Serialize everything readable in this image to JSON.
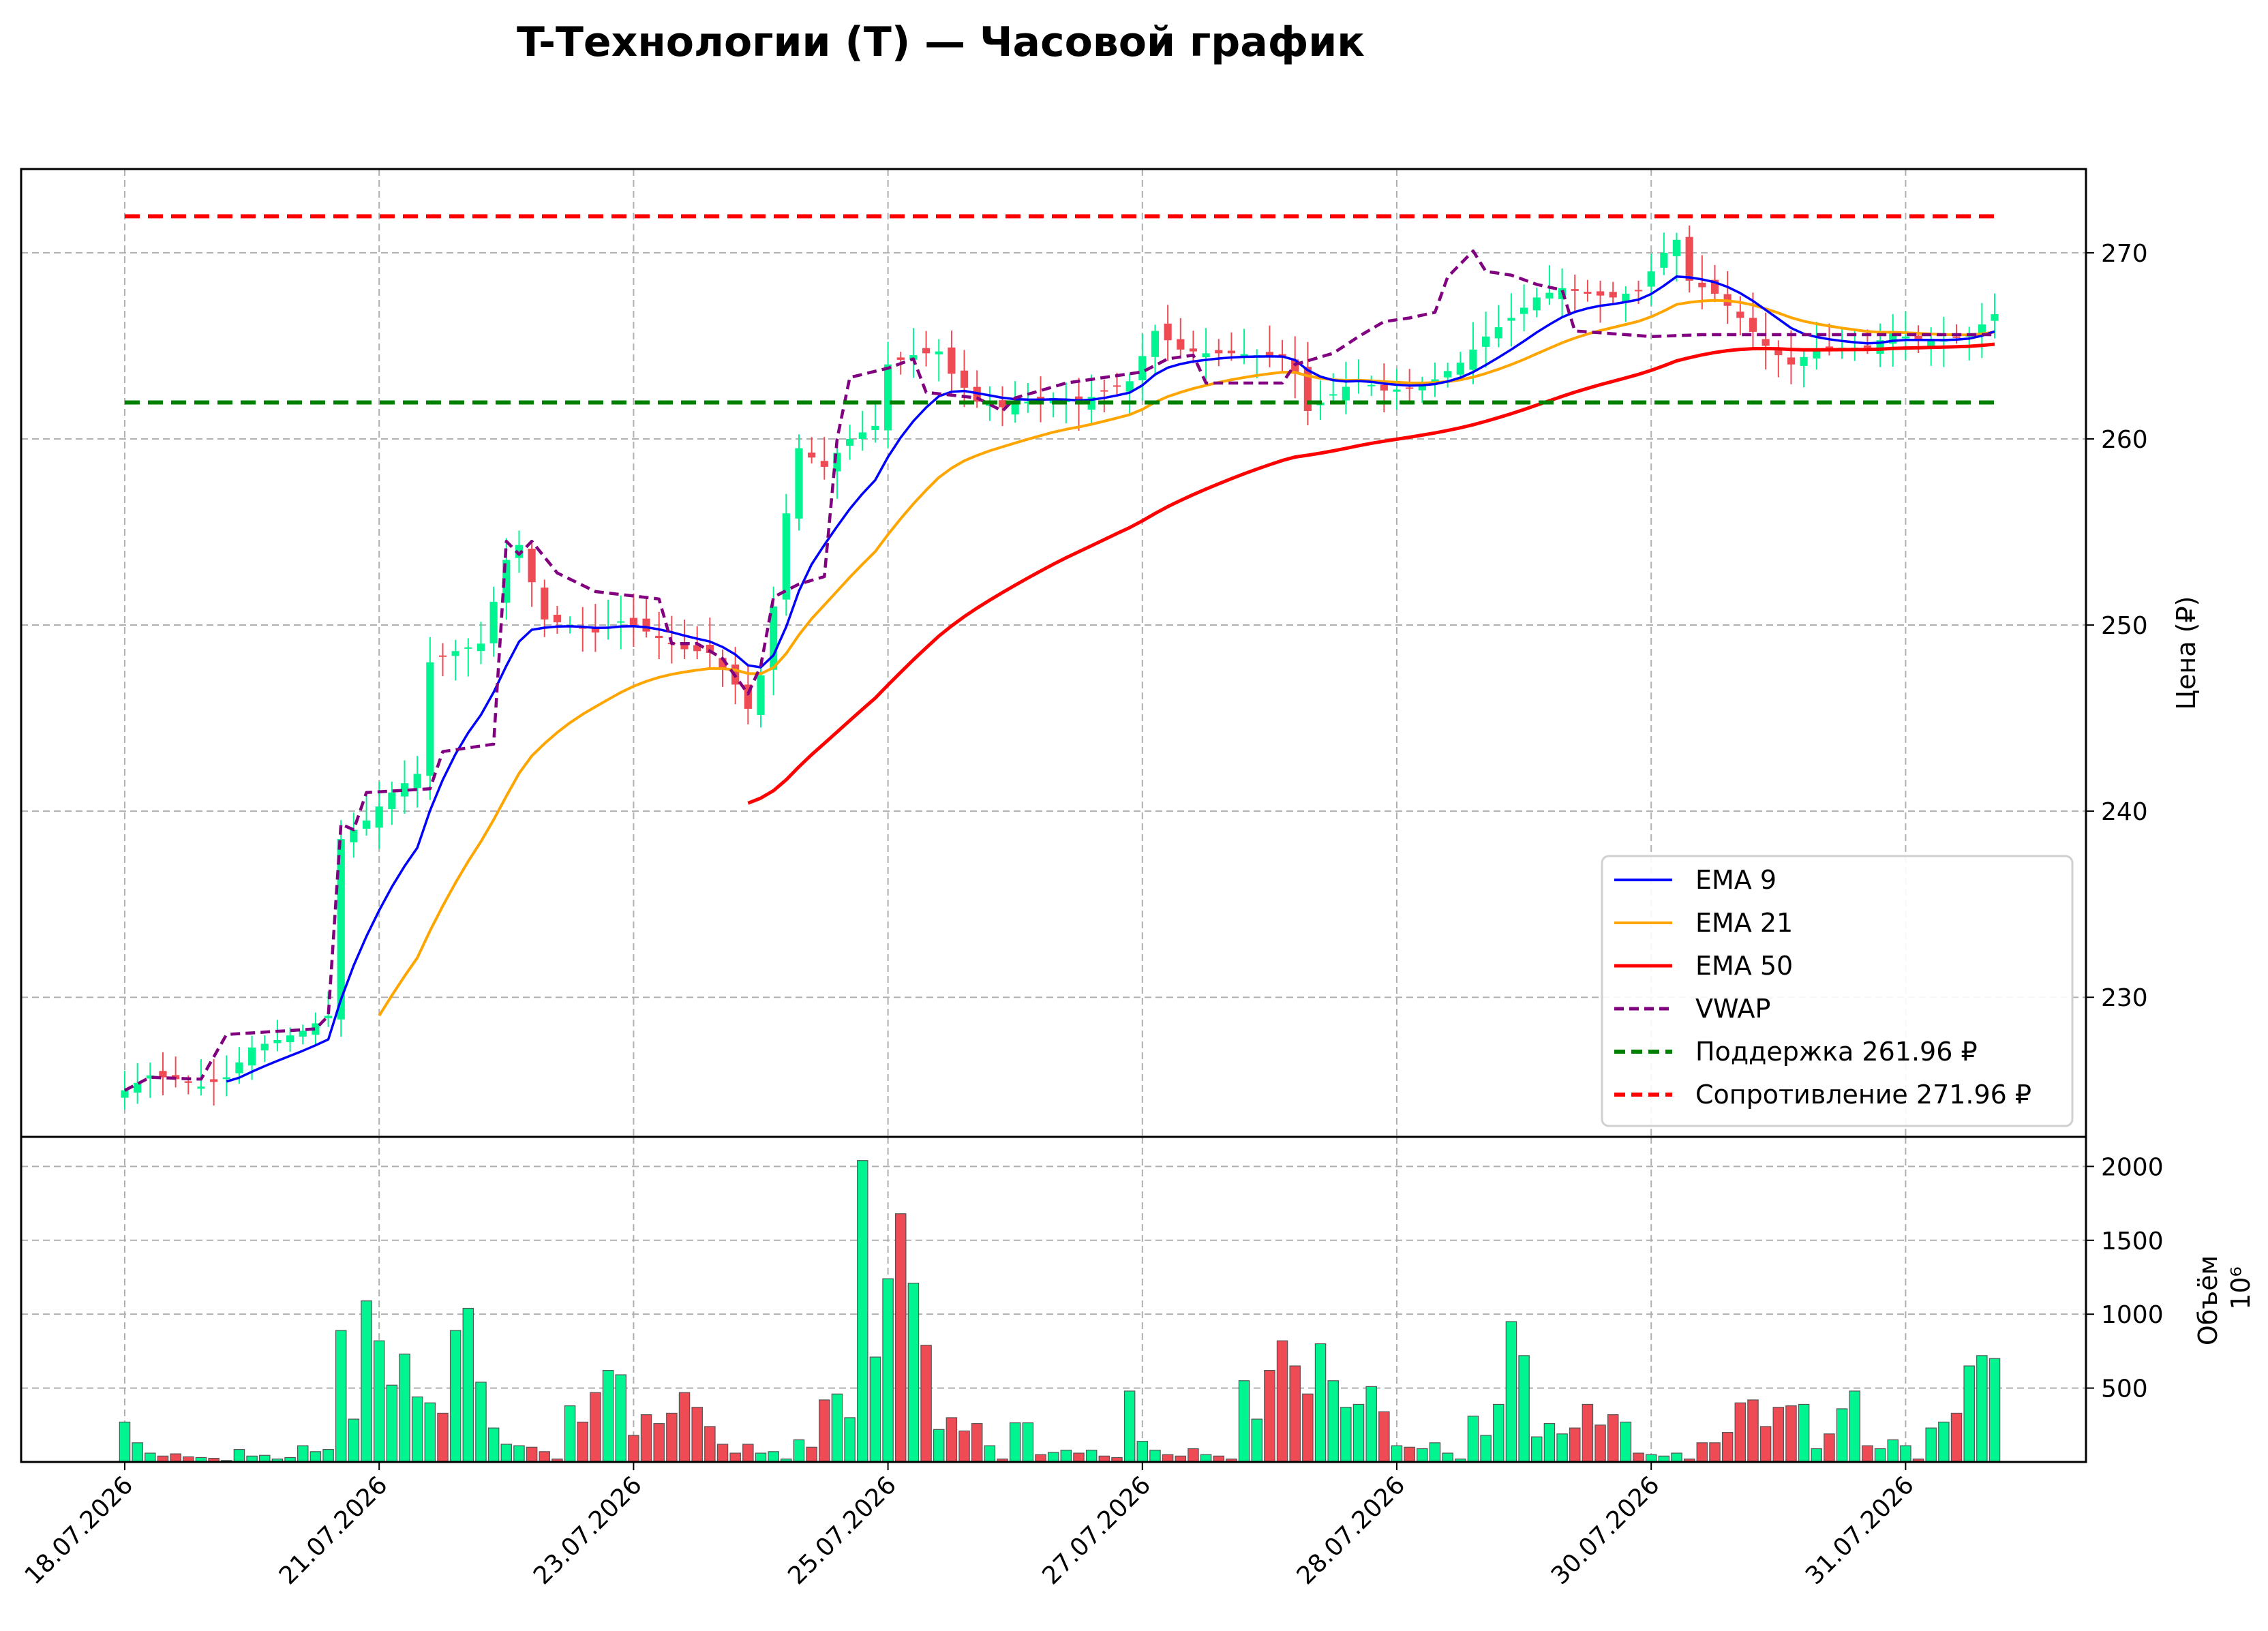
{
  "chart_data": {
    "type": "candlestick-with-volume",
    "title": "T-Технологии (T) — Часовой график",
    "price_panel": {
      "ylabel": "Цена (₽)",
      "ylim": [
        222.5,
        274.5
      ],
      "yticks": [
        230,
        240,
        250,
        260,
        270
      ],
      "grid": true,
      "legend_position": "lower-right"
    },
    "volume_panel": {
      "ylabel": "Объём",
      "exponent_label": "10⁶",
      "ylim": [
        0,
        2200
      ],
      "yticks": [
        500,
        1000,
        1500,
        2000
      ],
      "grid": true,
      "up_color": "#00f591",
      "down_color": "#ef4b55"
    },
    "x_axis": {
      "bars": 148,
      "tick_labels": [
        {
          "bar": 0,
          "label": "18.07.2026"
        },
        {
          "bar": 20,
          "label": "21.07.2026"
        },
        {
          "bar": 40,
          "label": "23.07.2026"
        },
        {
          "bar": 60,
          "label": "25.07.2026"
        },
        {
          "bar": 80,
          "label": "27.07.2026"
        },
        {
          "bar": 100,
          "label": "28.07.2026"
        },
        {
          "bar": 120,
          "label": "30.07.2026"
        },
        {
          "bar": 140,
          "label": "31.07.2026"
        }
      ]
    },
    "price_anchors": [
      [
        0,
        225.0
      ],
      [
        2,
        225.8
      ],
      [
        4,
        225.6
      ],
      [
        6,
        225.2
      ],
      [
        8,
        225.7
      ],
      [
        9,
        226.5
      ],
      [
        10,
        227.3
      ],
      [
        12,
        227.7
      ],
      [
        14,
        228.2
      ],
      [
        15,
        228.6
      ],
      [
        16,
        229.0
      ],
      [
        17,
        238.5
      ],
      [
        19,
        239.5
      ],
      [
        21,
        241.0
      ],
      [
        23,
        242.0
      ],
      [
        24,
        248.0
      ],
      [
        26,
        248.6
      ],
      [
        28,
        249.0
      ],
      [
        30,
        253.5
      ],
      [
        31,
        254.3
      ],
      [
        33,
        250.3
      ],
      [
        35,
        250.0
      ],
      [
        37,
        249.6
      ],
      [
        39,
        250.2
      ],
      [
        40,
        250.0
      ],
      [
        42,
        249.3
      ],
      [
        44,
        248.7
      ],
      [
        46,
        248.5
      ],
      [
        48,
        246.8
      ],
      [
        49,
        245.5
      ],
      [
        50,
        247.3
      ],
      [
        51,
        251.0
      ],
      [
        52,
        256.0
      ],
      [
        53,
        259.5
      ],
      [
        55,
        258.5
      ],
      [
        57,
        260.0
      ],
      [
        59,
        260.7
      ],
      [
        60,
        264.0
      ],
      [
        62,
        264.5
      ],
      [
        64,
        264.7
      ],
      [
        65,
        263.5
      ],
      [
        67,
        262.0
      ],
      [
        69,
        261.7
      ],
      [
        71,
        262.0
      ],
      [
        73,
        262.2
      ],
      [
        75,
        261.9
      ],
      [
        77,
        262.6
      ],
      [
        79,
        263.1
      ],
      [
        81,
        265.8
      ],
      [
        83,
        264.8
      ],
      [
        85,
        264.6
      ],
      [
        87,
        264.6
      ],
      [
        89,
        264.5
      ],
      [
        91,
        264.4
      ],
      [
        92,
        263.5
      ],
      [
        93,
        261.5
      ],
      [
        95,
        262.4
      ],
      [
        97,
        263.2
      ],
      [
        99,
        262.6
      ],
      [
        101,
        262.7
      ],
      [
        103,
        263.2
      ],
      [
        105,
        264.1
      ],
      [
        107,
        265.5
      ],
      [
        109,
        266.5
      ],
      [
        111,
        267.6
      ],
      [
        113,
        268.1
      ],
      [
        115,
        267.8
      ],
      [
        117,
        267.6
      ],
      [
        119,
        268.0
      ],
      [
        121,
        270.0
      ],
      [
        122,
        270.7
      ],
      [
        123,
        268.5
      ],
      [
        125,
        267.8
      ],
      [
        127,
        266.5
      ],
      [
        129,
        265.0
      ],
      [
        131,
        264.0
      ],
      [
        133,
        264.8
      ],
      [
        135,
        264.9
      ],
      [
        137,
        264.9
      ],
      [
        139,
        265.7
      ],
      [
        141,
        265.3
      ],
      [
        143,
        265.3
      ],
      [
        145,
        265.6
      ],
      [
        147,
        266.7
      ]
    ],
    "volume_anchors": [
      [
        0,
        270
      ],
      [
        1,
        130
      ],
      [
        2,
        60
      ],
      [
        3,
        40
      ],
      [
        4,
        55
      ],
      [
        5,
        35
      ],
      [
        6,
        30
      ],
      [
        7,
        25
      ],
      [
        8,
        10
      ],
      [
        9,
        85
      ],
      [
        10,
        40
      ],
      [
        11,
        45
      ],
      [
        12,
        20
      ],
      [
        13,
        30
      ],
      [
        14,
        110
      ],
      [
        15,
        70
      ],
      [
        16,
        85
      ],
      [
        17,
        890
      ],
      [
        18,
        290
      ],
      [
        19,
        1090
      ],
      [
        20,
        820
      ],
      [
        21,
        520
      ],
      [
        22,
        730
      ],
      [
        23,
        440
      ],
      [
        24,
        400
      ],
      [
        25,
        330
      ],
      [
        26,
        890
      ],
      [
        27,
        1040
      ],
      [
        28,
        540
      ],
      [
        29,
        230
      ],
      [
        30,
        120
      ],
      [
        31,
        110
      ],
      [
        32,
        100
      ],
      [
        33,
        70
      ],
      [
        34,
        20
      ],
      [
        35,
        380
      ],
      [
        36,
        270
      ],
      [
        37,
        470
      ],
      [
        38,
        620
      ],
      [
        39,
        590
      ],
      [
        40,
        180
      ],
      [
        41,
        320
      ],
      [
        42,
        260
      ],
      [
        43,
        330
      ],
      [
        44,
        470
      ],
      [
        45,
        370
      ],
      [
        46,
        240
      ],
      [
        47,
        120
      ],
      [
        48,
        60
      ],
      [
        49,
        120
      ],
      [
        50,
        60
      ],
      [
        51,
        70
      ],
      [
        52,
        20
      ],
      [
        53,
        150
      ],
      [
        54,
        100
      ],
      [
        55,
        420
      ],
      [
        56,
        460
      ],
      [
        57,
        300
      ],
      [
        58,
        2040
      ],
      [
        59,
        710
      ],
      [
        60,
        1240
      ],
      [
        61,
        1680
      ],
      [
        62,
        1210
      ],
      [
        63,
        790
      ],
      [
        64,
        220
      ],
      [
        65,
        300
      ],
      [
        66,
        210
      ],
      [
        67,
        260
      ],
      [
        68,
        110
      ],
      [
        69,
        20
      ],
      [
        70,
        265
      ],
      [
        71,
        265
      ],
      [
        72,
        50
      ],
      [
        73,
        65
      ],
      [
        74,
        80
      ],
      [
        75,
        60
      ],
      [
        76,
        80
      ],
      [
        77,
        40
      ],
      [
        78,
        30
      ],
      [
        79,
        480
      ],
      [
        80,
        140
      ],
      [
        81,
        80
      ],
      [
        82,
        50
      ],
      [
        83,
        40
      ],
      [
        84,
        90
      ],
      [
        85,
        50
      ],
      [
        86,
        40
      ],
      [
        87,
        20
      ],
      [
        88,
        550
      ],
      [
        89,
        290
      ],
      [
        90,
        620
      ],
      [
        91,
        820
      ],
      [
        92,
        650
      ],
      [
        93,
        460
      ],
      [
        94,
        800
      ],
      [
        95,
        550
      ],
      [
        96,
        370
      ],
      [
        97,
        390
      ],
      [
        98,
        510
      ],
      [
        99,
        340
      ],
      [
        100,
        110
      ],
      [
        101,
        100
      ],
      [
        102,
        90
      ],
      [
        103,
        130
      ],
      [
        104,
        60
      ],
      [
        105,
        20
      ],
      [
        106,
        310
      ],
      [
        107,
        180
      ],
      [
        108,
        390
      ],
      [
        109,
        950
      ],
      [
        110,
        720
      ],
      [
        111,
        170
      ],
      [
        112,
        260
      ],
      [
        113,
        190
      ],
      [
        114,
        230
      ],
      [
        115,
        390
      ],
      [
        116,
        250
      ],
      [
        117,
        320
      ],
      [
        118,
        270
      ],
      [
        119,
        60
      ],
      [
        120,
        50
      ],
      [
        121,
        40
      ],
      [
        122,
        60
      ],
      [
        123,
        20
      ],
      [
        124,
        130
      ],
      [
        125,
        130
      ],
      [
        126,
        200
      ],
      [
        127,
        400
      ],
      [
        128,
        420
      ],
      [
        129,
        240
      ],
      [
        130,
        370
      ],
      [
        131,
        380
      ],
      [
        132,
        390
      ],
      [
        133,
        90
      ],
      [
        134,
        190
      ],
      [
        135,
        360
      ],
      [
        136,
        480
      ],
      [
        137,
        110
      ],
      [
        138,
        90
      ],
      [
        139,
        150
      ],
      [
        140,
        110
      ],
      [
        141,
        20
      ],
      [
        142,
        230
      ],
      [
        143,
        270
      ],
      [
        144,
        330
      ],
      [
        145,
        650
      ],
      [
        146,
        720
      ],
      [
        147,
        700
      ]
    ],
    "vwap_anchors": [
      [
        0,
        225.0
      ],
      [
        2,
        225.7
      ],
      [
        6,
        225.6
      ],
      [
        7,
        226.8
      ],
      [
        8,
        228.0
      ],
      [
        15,
        228.3
      ],
      [
        16,
        229.0
      ],
      [
        17,
        239.3
      ],
      [
        18,
        239.0
      ],
      [
        19,
        241.0
      ],
      [
        24,
        241.2
      ],
      [
        25,
        243.2
      ],
      [
        29,
        243.6
      ],
      [
        30,
        254.5
      ],
      [
        31,
        253.8
      ],
      [
        32,
        254.5
      ],
      [
        34,
        252.8
      ],
      [
        37,
        251.8
      ],
      [
        42,
        251.4
      ],
      [
        43,
        249.0
      ],
      [
        45,
        249.0
      ],
      [
        47,
        248.2
      ],
      [
        49,
        246.3
      ],
      [
        50,
        247.8
      ],
      [
        51,
        251.5
      ],
      [
        53,
        252.2
      ],
      [
        55,
        252.6
      ],
      [
        56,
        260.0
      ],
      [
        57,
        263.3
      ],
      [
        60,
        263.8
      ],
      [
        62,
        264.3
      ],
      [
        63,
        262.5
      ],
      [
        67,
        262.2
      ],
      [
        69,
        261.5
      ],
      [
        70,
        262.2
      ],
      [
        72,
        262.6
      ],
      [
        74,
        263.0
      ],
      [
        78,
        263.4
      ],
      [
        80,
        263.6
      ],
      [
        82,
        264.3
      ],
      [
        84,
        264.5
      ],
      [
        85,
        263.0
      ],
      [
        89,
        263.0
      ],
      [
        91,
        263.0
      ],
      [
        92,
        264.0
      ],
      [
        95,
        264.6
      ],
      [
        97,
        265.5
      ],
      [
        99,
        266.3
      ],
      [
        101,
        266.5
      ],
      [
        103,
        266.8
      ],
      [
        104,
        268.7
      ],
      [
        106,
        270.1
      ],
      [
        107,
        269.0
      ],
      [
        109,
        268.8
      ],
      [
        111,
        268.3
      ],
      [
        113,
        268.0
      ],
      [
        114,
        265.8
      ],
      [
        120,
        265.5
      ],
      [
        124,
        265.6
      ],
      [
        147,
        265.6
      ]
    ],
    "ema_periods": [
      9,
      21,
      50
    ],
    "series": [
      {
        "name": "EMA 9",
        "color": "#0000ff"
      },
      {
        "name": "EMA 21",
        "color": "#ffa500"
      },
      {
        "name": "EMA 50",
        "color": "#ff0000"
      },
      {
        "name": "VWAP",
        "color": "#800080"
      },
      {
        "name": "Поддержка 261.96 ₽",
        "color": "#008000",
        "value": 261.96
      },
      {
        "name": "Сопротивление 271.96 ₽",
        "color": "#ff0000",
        "value": 271.96
      }
    ]
  }
}
